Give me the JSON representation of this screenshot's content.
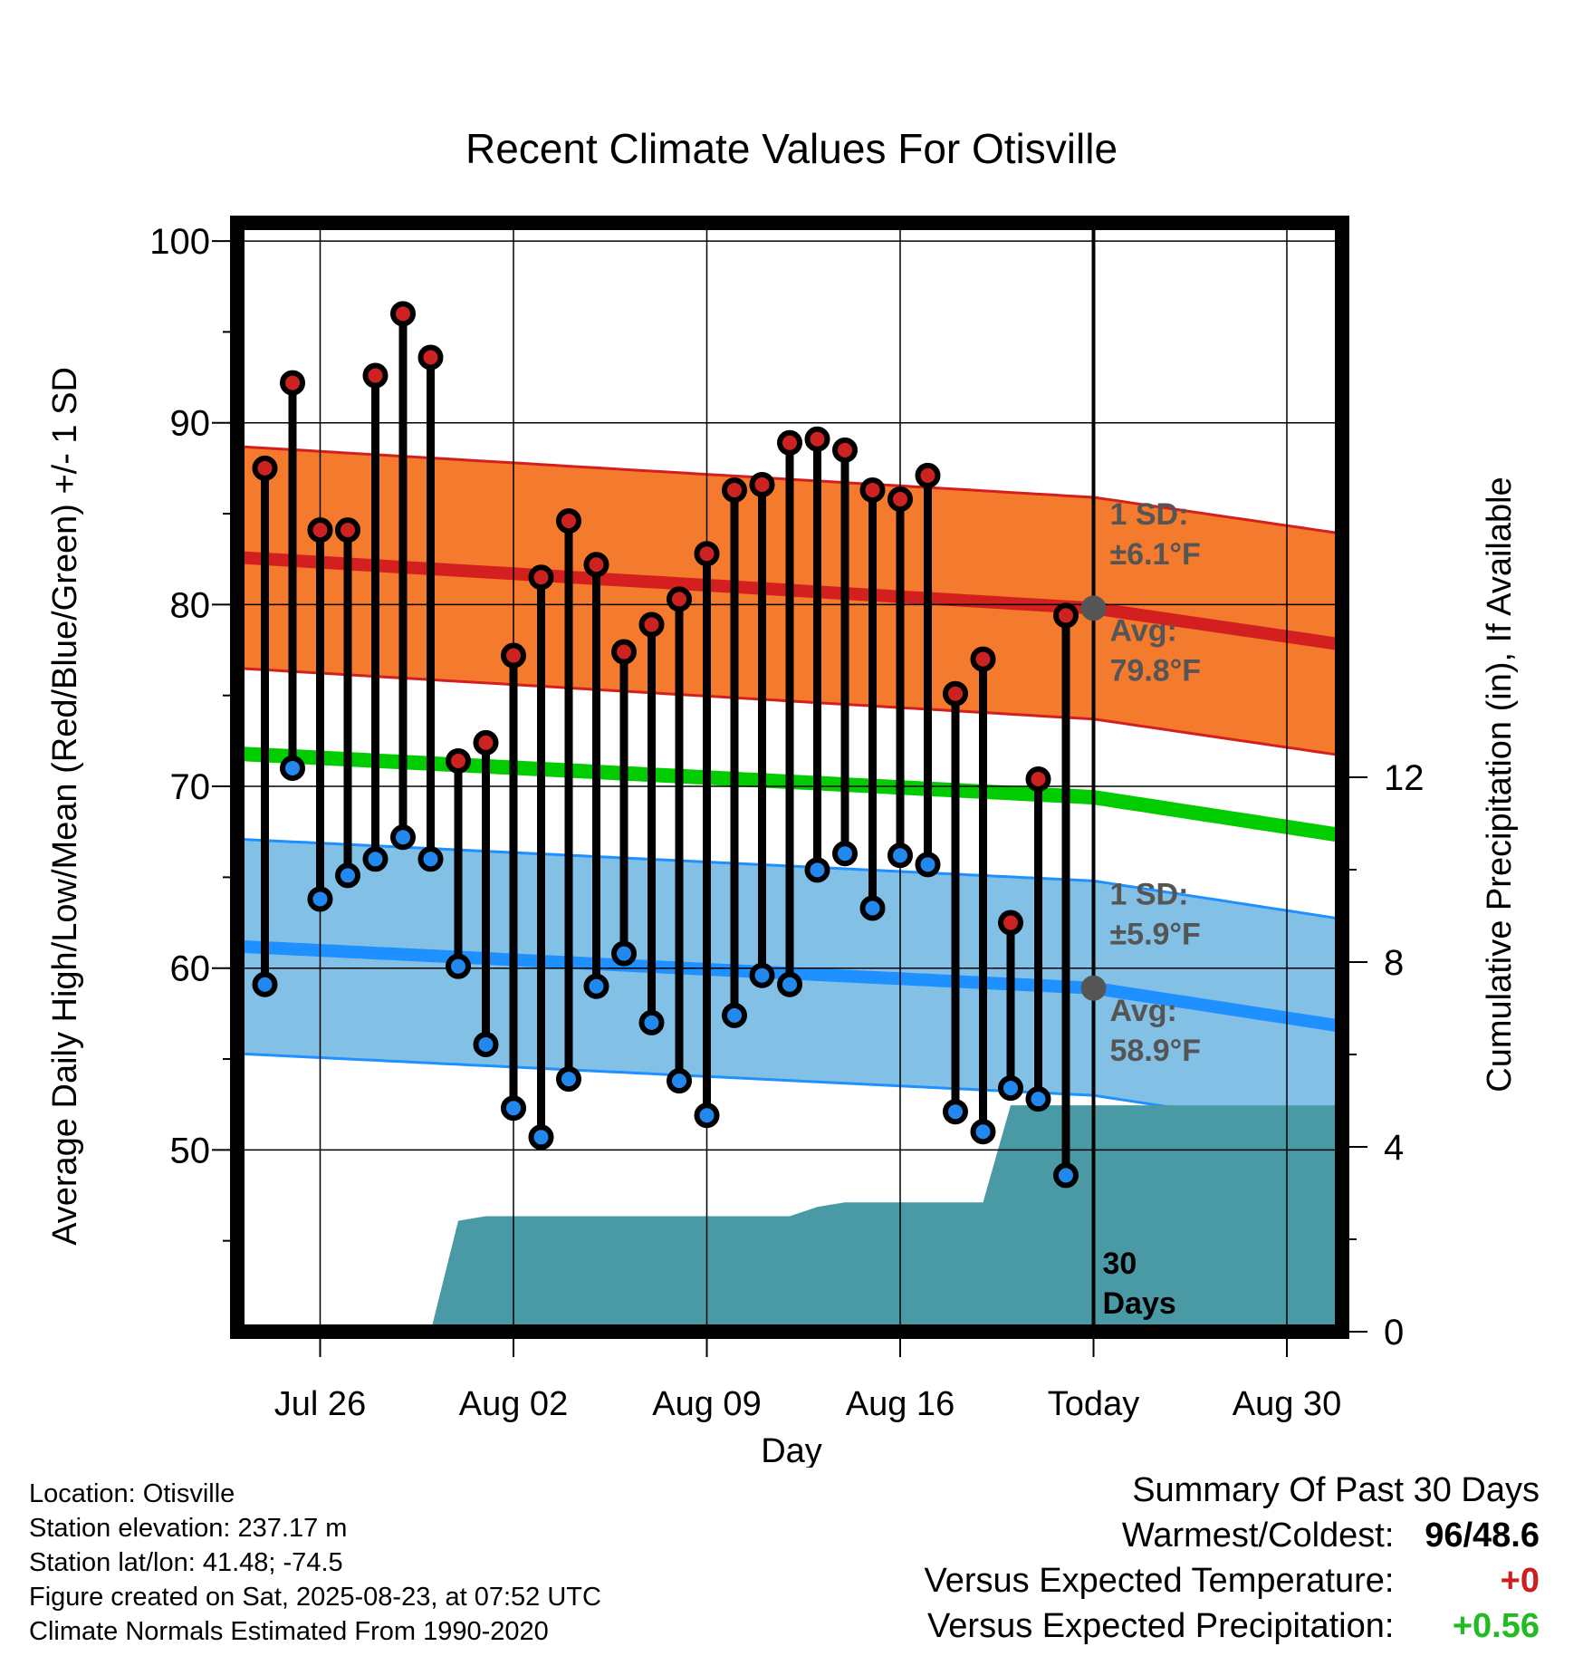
{
  "chart_data": {
    "type": "line",
    "title": "Recent Climate Values For Otisville",
    "xlabel": "Day",
    "ylabel": "Average Daily High/Low/Mean (Red/Blue/Green) +/- 1 SD",
    "y2label": "Cumulative Precipitation (in), If Available",
    "ylim": [
      40,
      101
    ],
    "y2lim": [
      0,
      24
    ],
    "x_tick_labels": [
      "Jul 26",
      "Aug 02",
      "Aug 09",
      "Aug 16",
      "Today",
      "Aug 30"
    ],
    "x_tick_dates": [
      "2025-07-26",
      "2025-08-02",
      "2025-08-09",
      "2025-08-16",
      "2025-08-23",
      "2025-08-30"
    ],
    "y_ticks": [
      50,
      60,
      70,
      80,
      90,
      100
    ],
    "y2_ticks": [
      0,
      4,
      8,
      12
    ],
    "x_range": [
      "2025-07-23",
      "2025-09-01"
    ],
    "days": [
      "2025-07-24",
      "2025-07-25",
      "2025-07-26",
      "2025-07-27",
      "2025-07-28",
      "2025-07-29",
      "2025-07-30",
      "2025-07-31",
      "2025-08-01",
      "2025-08-02",
      "2025-08-03",
      "2025-08-04",
      "2025-08-05",
      "2025-08-06",
      "2025-08-07",
      "2025-08-08",
      "2025-08-09",
      "2025-08-10",
      "2025-08-11",
      "2025-08-12",
      "2025-08-13",
      "2025-08-14",
      "2025-08-15",
      "2025-08-16",
      "2025-08-17",
      "2025-08-18",
      "2025-08-19",
      "2025-08-20",
      "2025-08-21",
      "2025-08-22"
    ],
    "daily_high": [
      87.5,
      92.2,
      84.1,
      84.1,
      92.6,
      96.0,
      93.6,
      71.4,
      72.4,
      77.2,
      81.5,
      84.6,
      82.2,
      77.4,
      78.9,
      80.3,
      82.8,
      86.3,
      86.6,
      88.9,
      89.1,
      88.5,
      86.3,
      85.8,
      87.1,
      75.1,
      77.0,
      62.5,
      70.4,
      79.4
    ],
    "daily_low": [
      59.1,
      71.0,
      63.8,
      65.1,
      66.0,
      67.2,
      66.0,
      60.1,
      55.8,
      52.3,
      50.7,
      53.9,
      59.0,
      60.8,
      57.0,
      53.8,
      51.9,
      57.4,
      59.6,
      59.1,
      65.4,
      66.3,
      63.3,
      66.2,
      65.7,
      52.1,
      51.0,
      53.4,
      52.8,
      48.6
    ],
    "cumulative_precip_x": [
      "2025-07-23",
      "2025-07-30",
      "2025-07-31",
      "2025-08-01",
      "2025-08-10",
      "2025-08-11",
      "2025-08-12",
      "2025-08-13",
      "2025-08-14",
      "2025-08-15",
      "2025-08-16",
      "2025-08-17",
      "2025-08-18",
      "2025-08-19",
      "2025-08-20",
      "2025-08-21",
      "2025-08-22",
      "2025-08-23",
      "2025-09-01"
    ],
    "cumulative_precip": [
      0,
      0,
      2.4,
      2.5,
      2.5,
      2.5,
      2.5,
      2.7,
      2.8,
      2.8,
      2.8,
      2.8,
      2.8,
      2.8,
      4.9,
      4.9,
      4.9,
      4.9,
      4.9
    ],
    "normal_high_x": [
      "2025-07-23",
      "2025-08-23",
      "2025-09-01"
    ],
    "normal_high": [
      82.6,
      79.8,
      77.8
    ],
    "normal_high_sd": 6.1,
    "normal_low_x": [
      "2025-07-23",
      "2025-08-23",
      "2025-09-01"
    ],
    "normal_low": [
      61.2,
      58.9,
      56.8
    ],
    "normal_low_sd": 5.9,
    "normal_mean_x": [
      "2025-07-23",
      "2025-08-23",
      "2025-09-01"
    ],
    "normal_mean": [
      71.8,
      69.4,
      67.3
    ],
    "annotations": {
      "high_sd": [
        "1 SD:",
        "±6.1°F"
      ],
      "high_avg": [
        "Avg:",
        "79.8°F"
      ],
      "low_sd": [
        "1 SD:",
        "±5.9°F"
      ],
      "low_avg": [
        "Avg:",
        "58.9°F"
      ],
      "period": [
        "30",
        "Days"
      ]
    },
    "grid": true,
    "colors": {
      "high_band": "#f47a2e",
      "high_line": "#d41f1f",
      "low_band": "#82c0e6",
      "low_line": "#1e90ff",
      "mean_line": "#00cc00",
      "precip_fill": "#4a9aa5",
      "high_marker": "#cc2222",
      "low_marker": "#2288ee",
      "today_marker": "#555555"
    }
  },
  "footer": {
    "location": "Location: Otisville",
    "elevation": "Station elevation: 237.17 m",
    "latlon": "Station lat/lon: 41.48; -74.5",
    "created": "Figure created on Sat, 2025-08-23, at 07:52 UTC",
    "normals": "Climate Normals Estimated From 1990-2020"
  },
  "summary": {
    "title": "Summary Of Past 30 Days",
    "warmest_label": "Warmest/Coldest:",
    "warmest_value": "96/48.6",
    "temp_label": "Versus Expected Temperature:",
    "temp_value": "+0",
    "precip_label": "Versus Expected Precipitation:",
    "precip_value": "+0.56"
  }
}
